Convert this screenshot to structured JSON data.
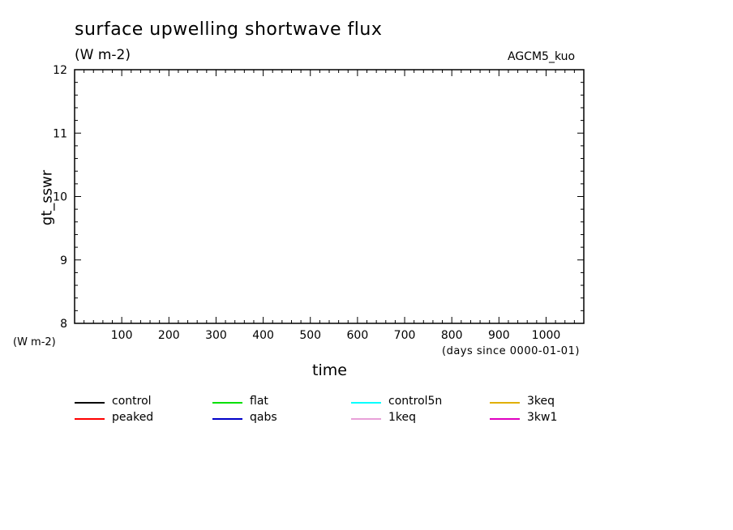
{
  "header": {
    "title": "surface upwelling shortwave flux",
    "units": "(W m-2)",
    "model": "AGCM5_kuo"
  },
  "chart_data": {
    "type": "line",
    "title": "surface upwelling shortwave flux",
    "subtitle": "(W m-2)",
    "xlabel": "time",
    "x_units_note": "(days since 0000-01-01)",
    "ylabel": "gt_sswr",
    "y_units": "(W m-2)",
    "xlim": [
      0,
      1080
    ],
    "ylim": [
      8,
      12
    ],
    "x_ticks": [
      "100",
      "200",
      "300",
      "400",
      "500",
      "600",
      "700",
      "800",
      "900",
      "1000"
    ],
    "y_ticks": [
      "8",
      "9",
      "10",
      "11",
      "12"
    ],
    "grid": false,
    "legend_placement": "bottom",
    "series": [
      {
        "name": "control",
        "color": "#000000",
        "values": []
      },
      {
        "name": "flat",
        "color": "#00e000",
        "values": []
      },
      {
        "name": "control5n",
        "color": "#00ffff",
        "values": []
      },
      {
        "name": "3keq",
        "color": "#e0b000",
        "values": []
      },
      {
        "name": "peaked",
        "color": "#ff0000",
        "values": []
      },
      {
        "name": "qabs",
        "color": "#0000c8",
        "values": []
      },
      {
        "name": "1keq",
        "color": "#e8a0d8",
        "values": []
      },
      {
        "name": "3kw1",
        "color": "#e000c0",
        "values": []
      }
    ]
  }
}
